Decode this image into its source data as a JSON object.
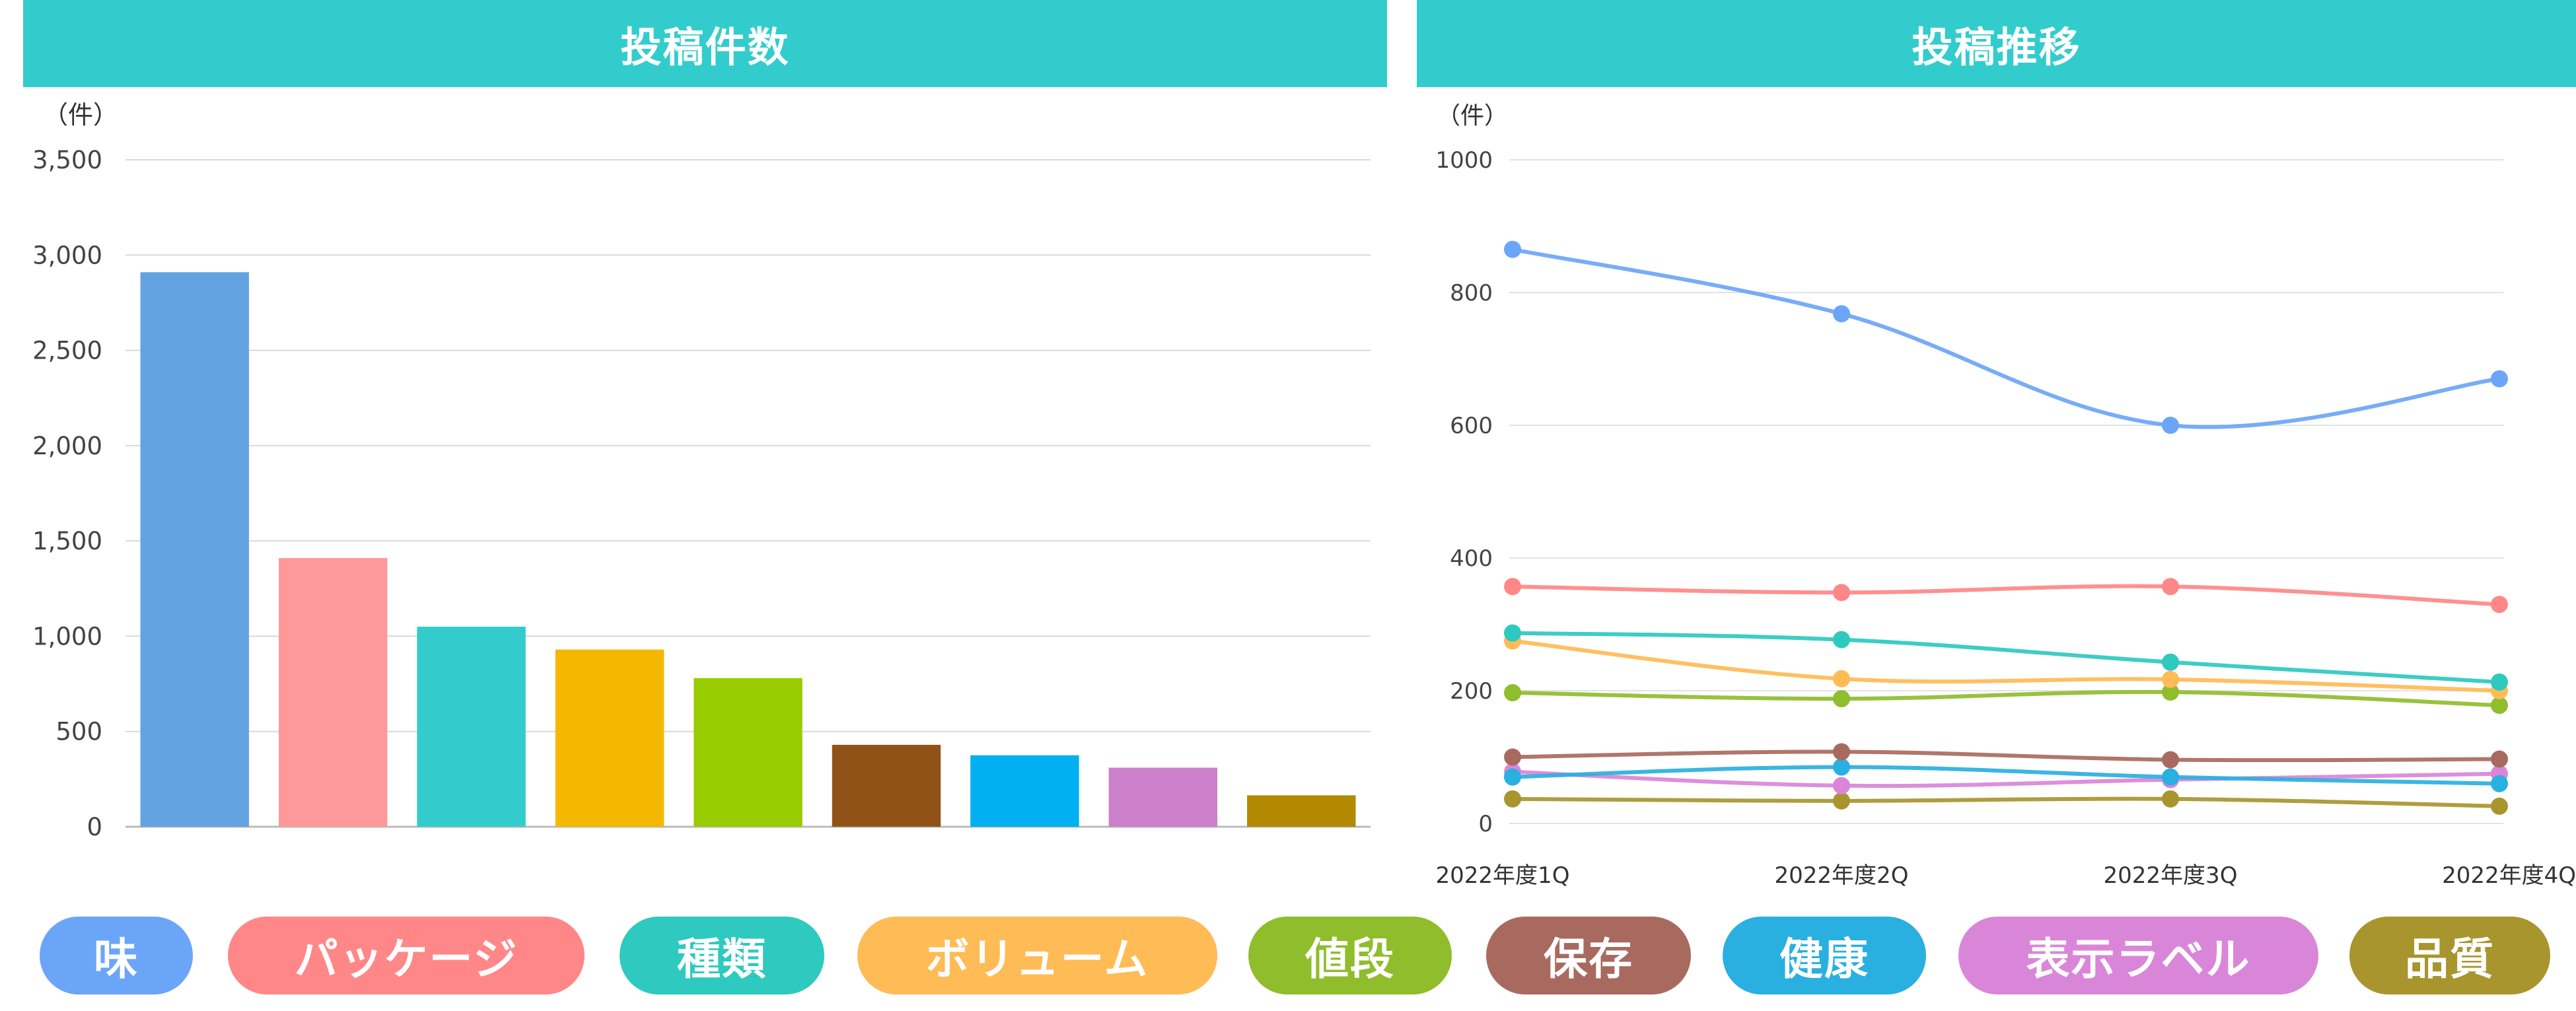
{
  "chart_data": [
    {
      "type": "bar",
      "title": "投稿件数",
      "unit_label": "（件）",
      "categories": [
        "味",
        "パッケージ",
        "種類",
        "ボリューム",
        "値段",
        "保存",
        "健康",
        "表示ラベル",
        "品質"
      ],
      "values": [
        2910,
        1410,
        1050,
        930,
        780,
        430,
        375,
        310,
        165
      ],
      "colors": [
        "#63a3e2",
        "#ff9999",
        "#33cccc",
        "#f5b800",
        "#99cc00",
        "#915218",
        "#00b0f0",
        "#cc7fca",
        "#b28900"
      ],
      "ylim": [
        0,
        3500
      ],
      "yticks": [
        "0",
        "500",
        "1,000",
        "1,500",
        "2,000",
        "2,500",
        "3,000",
        "3,500"
      ],
      "grid": true
    },
    {
      "type": "line",
      "title": "投稿推移",
      "unit_label": "（件）",
      "categories": [
        "2022年度1Q",
        "2022年度2Q",
        "2022年度3Q",
        "2022年度4Q"
      ],
      "ylim": [
        0,
        1000
      ],
      "yticks": [
        "0",
        "200",
        "400",
        "600",
        "800",
        "1000"
      ],
      "grid": true,
      "series": [
        {
          "name": "味",
          "color": "#6ba5f7",
          "values": [
            865,
            768,
            600,
            670
          ]
        },
        {
          "name": "パッケージ",
          "color": "#ff8787",
          "values": [
            357,
            348,
            357,
            330
          ]
        },
        {
          "name": "種類",
          "color": "#2ec9bf",
          "values": [
            287,
            277,
            243,
            213
          ]
        },
        {
          "name": "ボリューム",
          "color": "#ffbb55",
          "values": [
            275,
            218,
            217,
            200
          ]
        },
        {
          "name": "値段",
          "color": "#8fbd2c",
          "values": [
            197,
            188,
            198,
            178
          ]
        },
        {
          "name": "保存",
          "color": "#a86a5f",
          "values": [
            100,
            108,
            96,
            97
          ]
        },
        {
          "name": "健康",
          "color": "#29b0e0",
          "values": [
            70,
            85,
            70,
            60
          ]
        },
        {
          "name": "表示ラベル",
          "color": "#d986d9",
          "values": [
            78,
            57,
            66,
            75
          ]
        },
        {
          "name": "品質",
          "color": "#a8952e",
          "values": [
            37,
            34,
            37,
            26
          ]
        }
      ]
    }
  ],
  "legend": [
    {
      "label": "味",
      "color": "#6ba5f7"
    },
    {
      "label": "パッケージ",
      "color": "#ff8787"
    },
    {
      "label": "種類",
      "color": "#2ec9bf"
    },
    {
      "label": "ボリューム",
      "color": "#ffbb55"
    },
    {
      "label": "値段",
      "color": "#8fbd2c"
    },
    {
      "label": "保存",
      "color": "#a86a5f"
    },
    {
      "label": "健康",
      "color": "#29b0e0"
    },
    {
      "label": "表示ラベル",
      "color": "#d986d9"
    },
    {
      "label": "品質",
      "color": "#a8952e"
    }
  ]
}
